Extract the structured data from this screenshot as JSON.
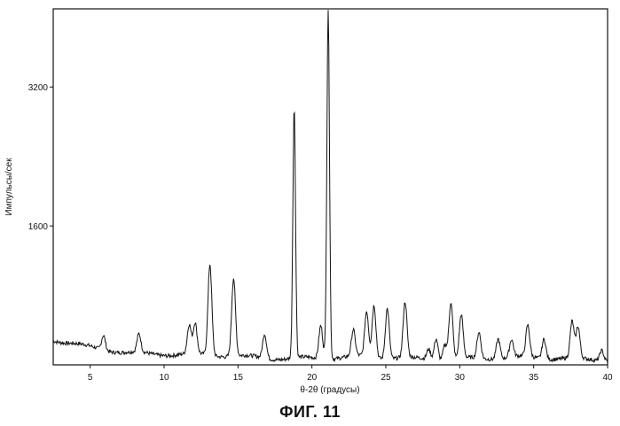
{
  "caption": "ФИГ. 11",
  "chart_data": {
    "type": "line",
    "xlabel": "θ-2θ (градусы)",
    "ylabel": "Импульсы/сек",
    "xlim": [
      2.5,
      40
    ],
    "ylim": [
      0,
      4100
    ],
    "x_ticks": [
      5,
      10,
      15,
      20,
      25,
      30,
      35,
      40
    ],
    "y_ticks": [
      1600,
      3200
    ],
    "grid": false,
    "series": [
      {
        "color": "#111111",
        "peaks": [
          {
            "x": 5.9,
            "height": 170
          },
          {
            "x": 8.3,
            "height": 210
          },
          {
            "x": 11.7,
            "height": 330
          },
          {
            "x": 12.1,
            "height": 350
          },
          {
            "x": 13.1,
            "height": 1050
          },
          {
            "x": 14.7,
            "height": 900
          },
          {
            "x": 16.8,
            "height": 280
          },
          {
            "x": 18.8,
            "height": 2880
          },
          {
            "x": 20.6,
            "height": 380
          },
          {
            "x": 21.1,
            "height": 4000
          },
          {
            "x": 22.8,
            "height": 300
          },
          {
            "x": 23.7,
            "height": 520
          },
          {
            "x": 24.2,
            "height": 600
          },
          {
            "x": 25.1,
            "height": 580
          },
          {
            "x": 26.3,
            "height": 640
          },
          {
            "x": 27.9,
            "height": 120
          },
          {
            "x": 28.4,
            "height": 250
          },
          {
            "x": 29.0,
            "height": 180
          },
          {
            "x": 29.4,
            "height": 660
          },
          {
            "x": 30.1,
            "height": 500
          },
          {
            "x": 31.3,
            "height": 300
          },
          {
            "x": 32.6,
            "height": 230
          },
          {
            "x": 33.5,
            "height": 200
          },
          {
            "x": 34.6,
            "height": 360
          },
          {
            "x": 35.7,
            "height": 230
          },
          {
            "x": 37.6,
            "height": 420
          },
          {
            "x": 38.0,
            "height": 360
          },
          {
            "x": 39.6,
            "height": 120
          }
        ],
        "baseline": {
          "start": 280,
          "end": 75
        }
      }
    ]
  }
}
